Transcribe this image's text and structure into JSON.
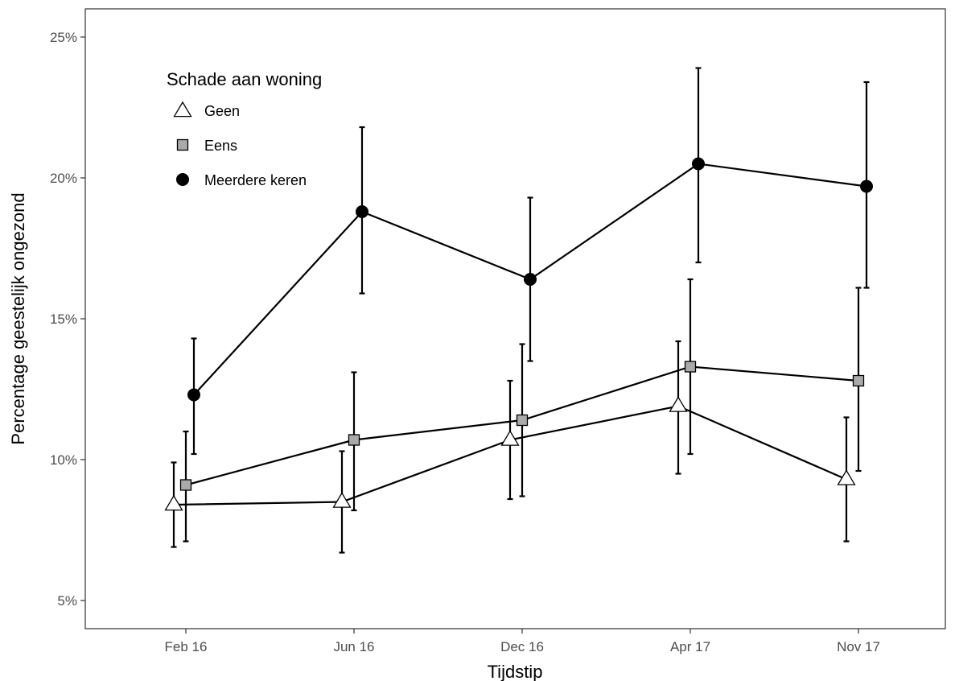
{
  "chart_data": {
    "type": "line",
    "xlabel": "Tijdstip",
    "ylabel": "Percentage geestelijk ongezond",
    "categories": [
      "Feb 16",
      "Jun 16",
      "Dec 16",
      "Apr 17",
      "Nov 17"
    ],
    "ylim": [
      4,
      26
    ],
    "yticks": [
      5,
      10,
      15,
      20,
      25
    ],
    "ytick_labels": [
      "5%",
      "10%",
      "15%",
      "20%",
      "25%"
    ],
    "grid": false,
    "error_bars": true,
    "legend": {
      "title": "Schade aan woning",
      "position": "top-left-inside"
    },
    "series": [
      {
        "name": "Geen",
        "marker": "triangle",
        "fill": "#ffffff",
        "values": [
          8.4,
          8.5,
          10.7,
          11.9,
          9.3
        ],
        "lower": [
          6.9,
          6.7,
          8.6,
          9.5,
          7.1
        ],
        "upper": [
          9.9,
          10.3,
          12.8,
          14.2,
          11.5
        ]
      },
      {
        "name": "Eens",
        "marker": "square",
        "fill": "#aaaaaa",
        "values": [
          9.1,
          10.7,
          11.4,
          13.3,
          12.8
        ],
        "lower": [
          7.1,
          8.2,
          8.7,
          10.2,
          9.6
        ],
        "upper": [
          11.0,
          13.1,
          14.1,
          16.4,
          16.1
        ]
      },
      {
        "name": "Meerdere keren",
        "marker": "circle",
        "fill": "#000000",
        "values": [
          12.3,
          18.8,
          16.4,
          20.5,
          19.7
        ],
        "lower": [
          10.2,
          15.9,
          13.5,
          17.0,
          16.1
        ],
        "upper": [
          14.3,
          21.8,
          19.3,
          23.9,
          23.4
        ]
      }
    ]
  }
}
